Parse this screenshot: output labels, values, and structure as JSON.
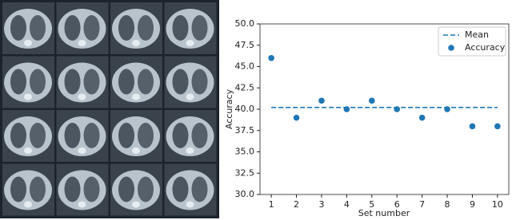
{
  "chart_data": {
    "type": "scatter",
    "xlabel": "Set number",
    "ylabel": "Accuracy",
    "series": [
      {
        "name": "Mean",
        "type": "line",
        "dashed": true,
        "color": "#1f77b4",
        "x": [
          1,
          10
        ],
        "values": [
          40.2,
          40.2
        ]
      },
      {
        "name": "Accuracy",
        "type": "scatter",
        "color": "#1f77b4",
        "x": [
          1,
          2,
          3,
          4,
          5,
          6,
          7,
          8,
          9,
          10
        ],
        "values": [
          46,
          39,
          41,
          40,
          41,
          40,
          39,
          40,
          38,
          38
        ]
      }
    ],
    "xlim": [
      0.55,
      10.45
    ],
    "xticks": [
      1,
      2,
      3,
      4,
      5,
      6,
      7,
      8,
      9,
      10
    ],
    "ylim": [
      30,
      50
    ],
    "yticks": [
      {
        "value": 30,
        "label": "30.0"
      },
      32.5,
      {
        "value": 35,
        "label": "35.0"
      },
      37.5,
      {
        "value": 40,
        "label": "40.0"
      },
      42.5,
      {
        "value": 45,
        "label": "45.0"
      },
      47.5,
      {
        "value": 50,
        "label": "50.0"
      }
    ],
    "legend": "upper right",
    "grid": false
  }
}
